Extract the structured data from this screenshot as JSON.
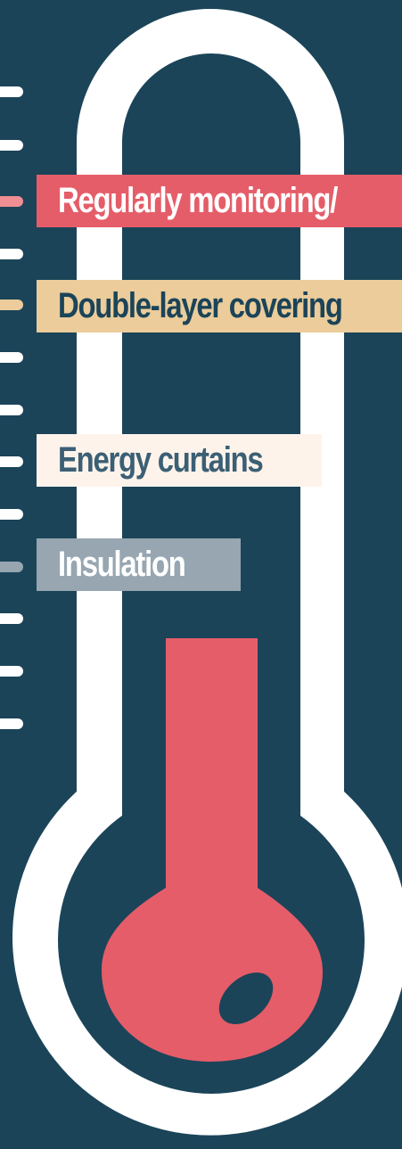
{
  "colors": {
    "background": "#1b4459",
    "thermometer_outline": "#ffffff",
    "mercury": "#e55d69",
    "tick": "#ffffff"
  },
  "labels": [
    {
      "text": "Regularly monitoring/",
      "box_color": "#e55d69",
      "text_color": "#ffffff",
      "tick_color": "#ef8e93"
    },
    {
      "text": "Double-layer covering",
      "box_color": "#ebcc9a",
      "text_color": "#1b4459",
      "tick_color": "#ebcc9a"
    },
    {
      "text": "Energy curtains",
      "box_color": "#fdf3ea",
      "text_color": "#3b5f75",
      "tick_color": "#ffffff"
    },
    {
      "text": "Insulation",
      "box_color": "#97a6b1",
      "text_color": "#ffffff",
      "tick_color": "#97a6b1"
    }
  ]
}
